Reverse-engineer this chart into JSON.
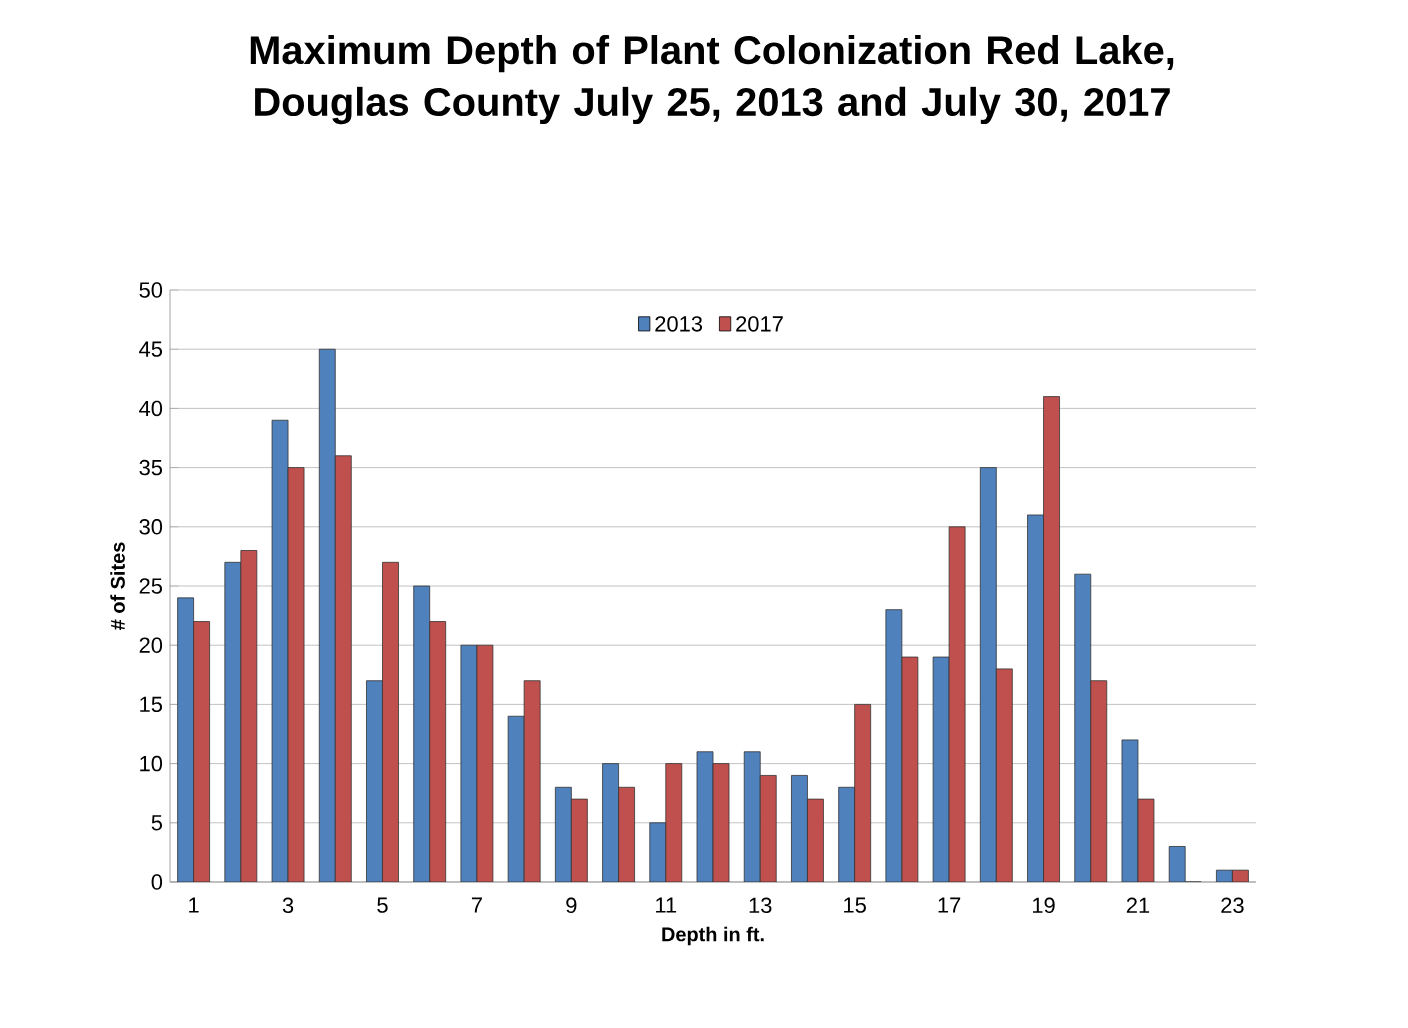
{
  "chart_data": {
    "type": "bar",
    "title": "Maximum Depth of Plant Colonization Red Lake, Douglas County July 25, 2013 and July 30, 2017",
    "xlabel": "Depth in ft.",
    "ylabel": "# of Sites",
    "categories": [
      "1",
      null,
      "3",
      null,
      "5",
      null,
      "7",
      null,
      "9",
      null,
      "11",
      null,
      "13",
      null,
      "15",
      null,
      "17",
      null,
      "19",
      null,
      "21",
      null,
      "23"
    ],
    "series": [
      {
        "name": "2013",
        "color": "#4f81bd",
        "values": [
          24,
          27,
          39,
          45,
          17,
          25,
          20,
          14,
          8,
          10,
          5,
          11,
          11,
          9,
          8,
          23,
          19,
          35,
          31,
          26,
          12,
          3,
          1
        ]
      },
      {
        "name": "2017",
        "color": "#c0504d",
        "values": [
          22,
          28,
          35,
          36,
          27,
          22,
          20,
          17,
          7,
          8,
          10,
          10,
          9,
          7,
          15,
          19,
          30,
          18,
          41,
          17,
          7,
          0,
          1
        ]
      }
    ],
    "ylim": [
      0,
      50
    ],
    "yticks": [
      0,
      5,
      10,
      15,
      20,
      25,
      30,
      35,
      40,
      45,
      50
    ],
    "grid": "y",
    "legend": "top"
  }
}
